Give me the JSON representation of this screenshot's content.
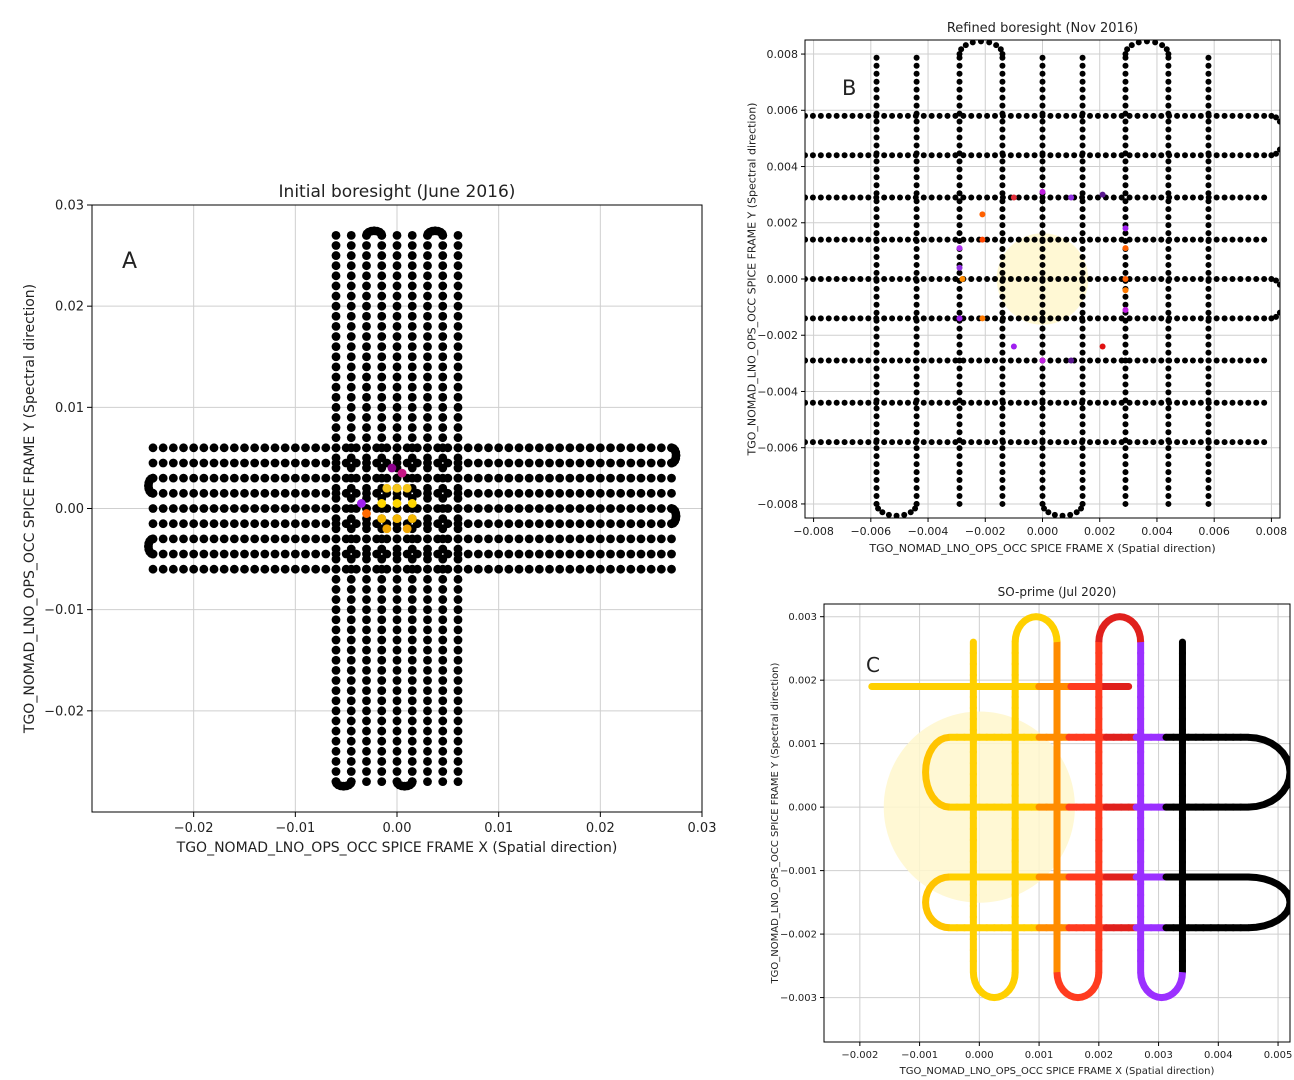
{
  "chart_data": [
    {
      "panel_label": "A",
      "type": "scatter",
      "title": "Initial boresight (June 2016)",
      "xlabel": "TGO_NOMAD_LNO_OPS_OCC SPICE FRAME X (Spatial direction)",
      "ylabel": "TGO_NOMAD_LNO_OPS_OCC SPICE FRAME Y (Spectral direction)",
      "xlim": [
        -0.03,
        0.03
      ],
      "ylim": [
        -0.03,
        0.03
      ],
      "xticks": [
        -0.02,
        -0.01,
        0.0,
        0.01,
        0.02,
        0.03
      ],
      "xtick_labels": [
        "−0.02",
        "−0.01",
        "0.00",
        "0.01",
        "0.02",
        "0.03"
      ],
      "yticks": [
        -0.02,
        -0.01,
        0.0,
        0.01,
        0.02,
        0.03
      ],
      "ytick_labels": [
        "−0.02",
        "−0.01",
        "0.00",
        "0.01",
        "0.02",
        "0.03"
      ],
      "grid": true,
      "scan": {
        "horizontal_rows": [
          0.006,
          0.0045,
          0.003,
          0.0015,
          0.0,
          -0.0015,
          -0.003,
          -0.0045,
          -0.006
        ],
        "horizontal_x_range": [
          -0.024,
          0.027
        ],
        "vertical_cols": [
          -0.006,
          -0.0045,
          -0.003,
          -0.0015,
          0.0,
          0.0015,
          0.003,
          0.0045,
          0.006
        ],
        "vertical_y_range": [
          -0.027,
          0.027
        ]
      },
      "highlighted_points": [
        {
          "x": -0.001,
          "y": 0.002,
          "color": "#f5c518"
        },
        {
          "x": 0.0,
          "y": 0.002,
          "color": "#f5c518"
        },
        {
          "x": 0.001,
          "y": 0.002,
          "color": "#f5c518"
        },
        {
          "x": -0.0015,
          "y": 0.0005,
          "color": "#ffd700"
        },
        {
          "x": 0.0,
          "y": 0.0005,
          "color": "#ffd700"
        },
        {
          "x": 0.0015,
          "y": 0.0005,
          "color": "#ffd700"
        },
        {
          "x": -0.0015,
          "y": -0.001,
          "color": "#f5b700"
        },
        {
          "x": 0.0,
          "y": -0.001,
          "color": "#f5b700"
        },
        {
          "x": 0.0015,
          "y": -0.001,
          "color": "#f5b700"
        },
        {
          "x": -0.001,
          "y": -0.002,
          "color": "#f0a500"
        },
        {
          "x": 0.001,
          "y": -0.002,
          "color": "#f0a500"
        },
        {
          "x": -0.0035,
          "y": 0.0005,
          "color": "#a020f0"
        },
        {
          "x": -0.003,
          "y": -0.0005,
          "color": "#ff6a00"
        },
        {
          "x": -0.0005,
          "y": 0.004,
          "color": "#8b008b"
        },
        {
          "x": 0.0005,
          "y": 0.0035,
          "color": "#c71585"
        }
      ]
    },
    {
      "panel_label": "B",
      "type": "scatter",
      "title": "Refined boresight (Nov 2016)",
      "xlabel": "TGO_NOMAD_LNO_OPS_OCC SPICE FRAME X (Spatial direction)",
      "ylabel": "TGO_NOMAD_LNO_OPS_OCC SPICE FRAME Y (Spectral direction)",
      "xlim": [
        -0.0083,
        0.0083
      ],
      "ylim": [
        -0.0085,
        0.0085
      ],
      "xticks": [
        -0.008,
        -0.006,
        -0.004,
        -0.002,
        0.0,
        0.002,
        0.004,
        0.006,
        0.008
      ],
      "xtick_labels": [
        "−0.008",
        "−0.006",
        "−0.004",
        "−0.002",
        "0.000",
        "0.002",
        "0.004",
        "0.006",
        "0.008"
      ],
      "yticks": [
        -0.008,
        -0.006,
        -0.004,
        -0.002,
        0.0,
        0.002,
        0.004,
        0.006,
        0.008
      ],
      "ytick_labels": [
        "−0.008",
        "−0.006",
        "−0.004",
        "−0.002",
        "0.000",
        "0.002",
        "0.004",
        "0.006",
        "0.008"
      ],
      "grid": true,
      "sun_disc": {
        "x": 0.0,
        "y": 0.0,
        "r": 0.0016,
        "color": "#fff7cc"
      },
      "scan": {
        "horizontal_rows": [
          0.0058,
          0.0044,
          0.0029,
          0.0014,
          0.0,
          -0.0014,
          -0.0029,
          -0.0044,
          -0.0058
        ],
        "horizontal_x_range": [
          -0.0083,
          0.008
        ],
        "vertical_cols": [
          -0.0058,
          -0.0044,
          -0.0029,
          -0.0014,
          0.0,
          0.0014,
          0.0029,
          0.0044,
          0.0058
        ],
        "vertical_y_range": [
          -0.008,
          0.008
        ]
      },
      "highlighted_points": [
        {
          "x": -0.001,
          "y": 0.0029,
          "color": "#e0303a"
        },
        {
          "x": 0.0,
          "y": 0.0031,
          "color": "#c020e0"
        },
        {
          "x": 0.001,
          "y": 0.0029,
          "color": "#9030e0"
        },
        {
          "x": 0.0021,
          "y": 0.003,
          "color": "#5a1890"
        },
        {
          "x": -0.0021,
          "y": 0.0023,
          "color": "#ff6000"
        },
        {
          "x": 0.0029,
          "y": 0.0018,
          "color": "#a020f0"
        },
        {
          "x": -0.0029,
          "y": 0.0011,
          "color": "#b030f0"
        },
        {
          "x": -0.0029,
          "y": 0.0004,
          "color": "#9030e0"
        },
        {
          "x": -0.0021,
          "y": 0.0014,
          "color": "#ff4500"
        },
        {
          "x": 0.0029,
          "y": 0.0011,
          "color": "#ff6000"
        },
        {
          "x": 0.0029,
          "y": -0.0004,
          "color": "#ff7a00"
        },
        {
          "x": -0.0021,
          "y": -0.0014,
          "color": "#ff7a00"
        },
        {
          "x": 0.0029,
          "y": -0.0011,
          "color": "#c020e0"
        },
        {
          "x": -0.0029,
          "y": -0.0014,
          "color": "#a020f0"
        },
        {
          "x": -0.001,
          "y": -0.0024,
          "color": "#a020f0"
        },
        {
          "x": 0.0,
          "y": -0.0029,
          "color": "#c020e0"
        },
        {
          "x": 0.001,
          "y": -0.0029,
          "color": "#5a1890"
        },
        {
          "x": 0.0021,
          "y": -0.0024,
          "color": "#e01010"
        },
        {
          "x": -0.0028,
          "y": 0.0,
          "color": "#ff8c00"
        },
        {
          "x": 0.0029,
          "y": 0.0,
          "color": "#ff6000"
        }
      ]
    },
    {
      "panel_label": "C",
      "type": "line",
      "title": "SO-prime (Jul 2020)",
      "xlabel": "TGO_NOMAD_LNO_OPS_OCC SPICE FRAME X (Spatial direction)",
      "ylabel": "TGO_NOMAD_LNO_OPS_OCC SPICE FRAME Y (Spectral direction)",
      "xlim": [
        -0.0026,
        0.0052
      ],
      "ylim": [
        -0.0037,
        0.0032
      ],
      "xticks": [
        -0.002,
        -0.001,
        0.0,
        0.001,
        0.002,
        0.003,
        0.004,
        0.005
      ],
      "xtick_labels": [
        "−0.002",
        "−0.001",
        "0.000",
        "0.001",
        "0.002",
        "0.003",
        "0.004",
        "0.005"
      ],
      "yticks": [
        -0.003,
        -0.002,
        -0.001,
        0.0,
        0.001,
        0.002,
        0.003
      ],
      "ytick_labels": [
        "−0.003",
        "−0.002",
        "−0.001",
        "0.000",
        "0.001",
        "0.002",
        "0.003"
      ],
      "grid": true,
      "sun_disc": {
        "x": 0.0,
        "y": 0.0,
        "r": 0.0016,
        "color": "#fff7cc"
      },
      "scan": {
        "horizontal_rows": [
          0.0019,
          0.0011,
          0.0,
          -0.0011,
          -0.0019
        ],
        "horizontal_x_range": [
          -0.0018,
          0.0045
        ],
        "vertical_cols": [
          -0.0001,
          0.0006,
          0.0013,
          0.002,
          0.0027,
          0.0034
        ],
        "vertical_y_range": [
          -0.0026,
          0.0026
        ]
      }
    }
  ]
}
